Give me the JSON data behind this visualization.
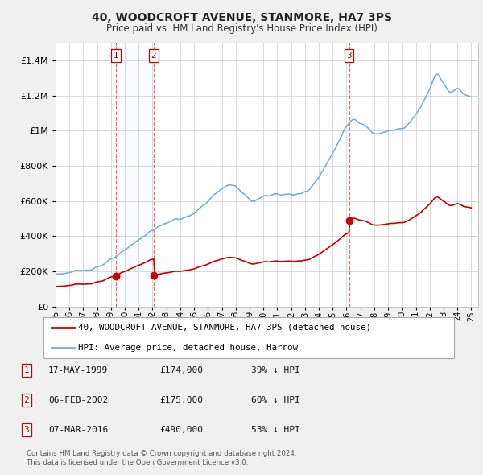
{
  "title": "40, WOODCROFT AVENUE, STANMORE, HA7 3PS",
  "subtitle": "Price paid vs. HM Land Registry's House Price Index (HPI)",
  "footer1": "Contains HM Land Registry data © Crown copyright and database right 2024.",
  "footer2": "This data is licensed under the Open Government Licence v3.0.",
  "legend_red": "40, WOODCROFT AVENUE, STANMORE, HA7 3PS (detached house)",
  "legend_blue": "HPI: Average price, detached house, Harrow",
  "transactions": [
    {
      "label": "1",
      "date": "17-MAY-1999",
      "price": "£174,000",
      "hpi": "39% ↓ HPI",
      "t": 1999.375
    },
    {
      "label": "2",
      "date": "06-FEB-2002",
      "price": "£175,000",
      "hpi": "60% ↓ HPI",
      "t": 2002.09
    },
    {
      "label": "3",
      "date": "07-MAR-2016",
      "price": "£490,000",
      "hpi": "53% ↓ HPI",
      "t": 2016.18
    }
  ],
  "transaction_prices": [
    174000,
    175000,
    490000
  ],
  "bg_color": "#f0f0f0",
  "plot_bg_color": "#ffffff",
  "red_color": "#cc0000",
  "blue_color": "#7bafd4",
  "vline_color": "#e07070",
  "shade_color": "#ddeeff",
  "grid_color": "#cccccc",
  "ylim": [
    0,
    1500000
  ],
  "xlim_min": 1995.0,
  "xlim_max": 2025.5
}
